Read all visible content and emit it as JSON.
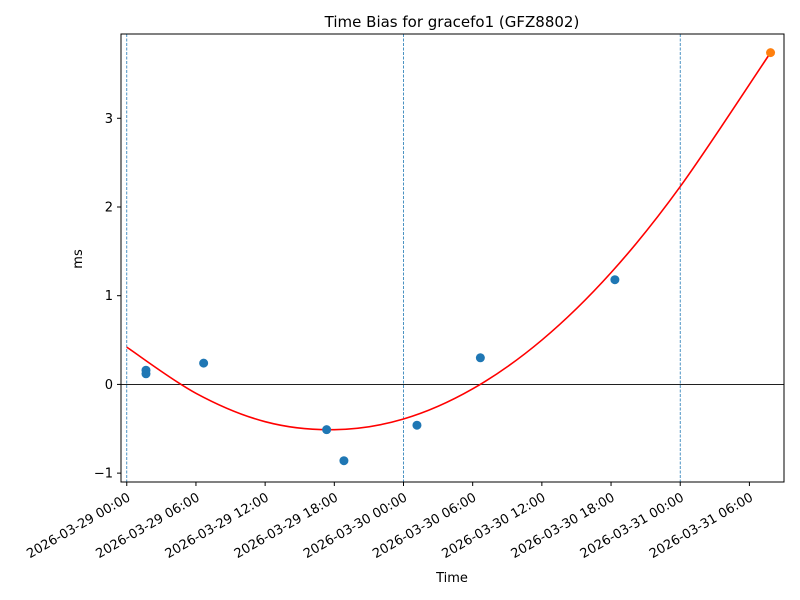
{
  "chart_data": {
    "type": "scatter",
    "title": "Time Bias for gracefo1 (GFZ8802)",
    "xlabel": "Time",
    "ylabel": "ms",
    "x_unit": "datetime",
    "xlim": [
      "2026-03-28T23:30",
      "2026-03-31T09:00"
    ],
    "ylim": [
      -1.1,
      3.95
    ],
    "x_ticks": [
      {
        "value": "2026-03-29T00:00",
        "label": "2026-03-29 00:00"
      },
      {
        "value": "2026-03-29T06:00",
        "label": "2026-03-29 06:00"
      },
      {
        "value": "2026-03-29T12:00",
        "label": "2026-03-29 12:00"
      },
      {
        "value": "2026-03-29T18:00",
        "label": "2026-03-29 18:00"
      },
      {
        "value": "2026-03-30T00:00",
        "label": "2026-03-30 00:00"
      },
      {
        "value": "2026-03-30T06:00",
        "label": "2026-03-30 06:00"
      },
      {
        "value": "2026-03-30T12:00",
        "label": "2026-03-30 12:00"
      },
      {
        "value": "2026-03-30T18:00",
        "label": "2026-03-30 18:00"
      },
      {
        "value": "2026-03-31T00:00",
        "label": "2026-03-31 00:00"
      },
      {
        "value": "2026-03-31T06:00",
        "label": "2026-03-31 06:00"
      }
    ],
    "y_ticks": [
      {
        "value": -1,
        "label": "−1"
      },
      {
        "value": 0,
        "label": "0"
      },
      {
        "value": 1,
        "label": "1"
      },
      {
        "value": 2,
        "label": "2"
      },
      {
        "value": 3,
        "label": "3"
      }
    ],
    "day_boundaries": [
      "2026-03-29T00:00",
      "2026-03-30T00:00",
      "2026-03-31T00:00"
    ],
    "zero_line": 0,
    "series": [
      {
        "kind": "scatter",
        "color": "#1f77b4",
        "points": [
          {
            "x": "2026-03-29T01:40",
            "y": 0.16
          },
          {
            "x": "2026-03-29T01:40",
            "y": 0.12
          },
          {
            "x": "2026-03-29T06:40",
            "y": 0.24
          },
          {
            "x": "2026-03-29T17:20",
            "y": -0.51
          },
          {
            "x": "2026-03-29T18:50",
            "y": -0.86
          },
          {
            "x": "2026-03-30T01:10",
            "y": -0.46
          },
          {
            "x": "2026-03-30T06:40",
            "y": 0.3
          },
          {
            "x": "2026-03-30T18:20",
            "y": 1.18
          }
        ]
      },
      {
        "kind": "scatter",
        "color": "#ff7f0e",
        "points": [
          {
            "x": "2026-03-31T07:50",
            "y": 3.74
          }
        ]
      },
      {
        "kind": "line",
        "color": "#ff0000",
        "points": [
          {
            "x": "2026-03-29T00:00",
            "y": 0.42
          },
          {
            "x": "2026-03-29T06:00",
            "y": -0.1
          },
          {
            "x": "2026-03-29T12:00",
            "y": -0.42
          },
          {
            "x": "2026-03-29T18:00",
            "y": -0.51
          },
          {
            "x": "2026-03-30T00:00",
            "y": -0.39
          },
          {
            "x": "2026-03-30T06:00",
            "y": -0.05
          },
          {
            "x": "2026-03-30T12:00",
            "y": 0.5
          },
          {
            "x": "2026-03-30T18:00",
            "y": 1.26
          },
          {
            "x": "2026-03-31T00:00",
            "y": 2.23
          },
          {
            "x": "2026-03-31T07:50",
            "y": 3.74
          }
        ]
      }
    ]
  }
}
